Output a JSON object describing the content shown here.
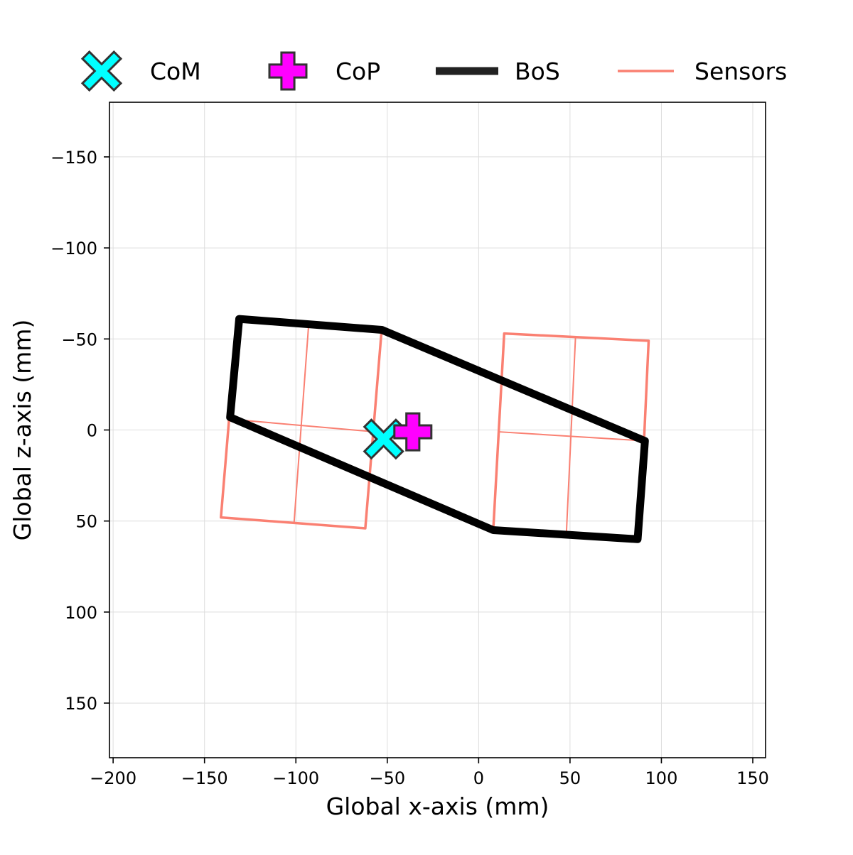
{
  "chart_data": {
    "type": "scatter",
    "title": "",
    "xlabel": "Global x-axis (mm)",
    "ylabel": "Global z-axis (mm)",
    "xlim": [
      -202,
      157
    ],
    "ylim": [
      180,
      -180
    ],
    "y_inverted": true,
    "grid": true,
    "legend_placement": "top, outside plot, single row",
    "x_ticks": [
      -200,
      -150,
      -100,
      -50,
      0,
      50,
      100,
      150
    ],
    "x_tick_labels": [
      "−200",
      "−150",
      "−100",
      "−50",
      "0",
      "50",
      "100",
      "150"
    ],
    "y_ticks": [
      -150,
      -100,
      -50,
      0,
      50,
      100,
      150
    ],
    "y_tick_labels": [
      "−150",
      "−100",
      "−50",
      "0",
      "50",
      "100",
      "150"
    ],
    "legend": [
      {
        "label": "CoM",
        "marker": "x-filled",
        "color": "#00ffff"
      },
      {
        "label": "CoP",
        "marker": "plus-filled",
        "color": "#ff00ff"
      },
      {
        "label": "BoS",
        "marker": "thick-line",
        "color": "#222222"
      },
      {
        "label": "Sensors",
        "marker": "line",
        "color": "#fa8072"
      }
    ],
    "series": [
      {
        "name": "CoM",
        "kind": "marker",
        "color": "#00ffff",
        "edge_color": "#333333",
        "points": [
          {
            "x": -52,
            "y": 5
          }
        ]
      },
      {
        "name": "CoP",
        "kind": "marker",
        "color": "#ff00ff",
        "edge_color": "#333333",
        "points": [
          {
            "x": -36,
            "y": 1
          }
        ]
      },
      {
        "name": "BoS",
        "kind": "polygon",
        "color": "#000000",
        "points": [
          {
            "x": -131,
            "y": -61
          },
          {
            "x": -53,
            "y": -55
          },
          {
            "x": 91,
            "y": 6
          },
          {
            "x": 87,
            "y": 60
          },
          {
            "x": 8,
            "y": 55
          },
          {
            "x": -136,
            "y": -7
          }
        ]
      },
      {
        "name": "Sensors",
        "kind": "sensor-plates",
        "color": "#fa8072",
        "plates": [
          {
            "outline": [
              {
                "x": -132,
                "y": -61
              },
              {
                "x": -53,
                "y": -56
              },
              {
                "x": -62,
                "y": 54
              },
              {
                "x": -141,
                "y": 48
              }
            ],
            "dividers": [
              [
                {
                  "x": -93,
                  "y": -58
                },
                {
                  "x": -101,
                  "y": 51
                }
              ],
              [
                {
                  "x": -137,
                  "y": -6
                },
                {
                  "x": -57,
                  "y": 1
                }
              ]
            ]
          },
          {
            "outline": [
              {
                "x": 14,
                "y": -53
              },
              {
                "x": 93,
                "y": -49
              },
              {
                "x": 88,
                "y": 60
              },
              {
                "x": 8,
                "y": 55
              }
            ],
            "dividers": [
              [
                {
                  "x": 53,
                  "y": -51
                },
                {
                  "x": 48,
                  "y": 57
                }
              ],
              [
                {
                  "x": 11,
                  "y": 1
                },
                {
                  "x": 91,
                  "y": 6
                }
              ]
            ]
          }
        ]
      }
    ]
  }
}
